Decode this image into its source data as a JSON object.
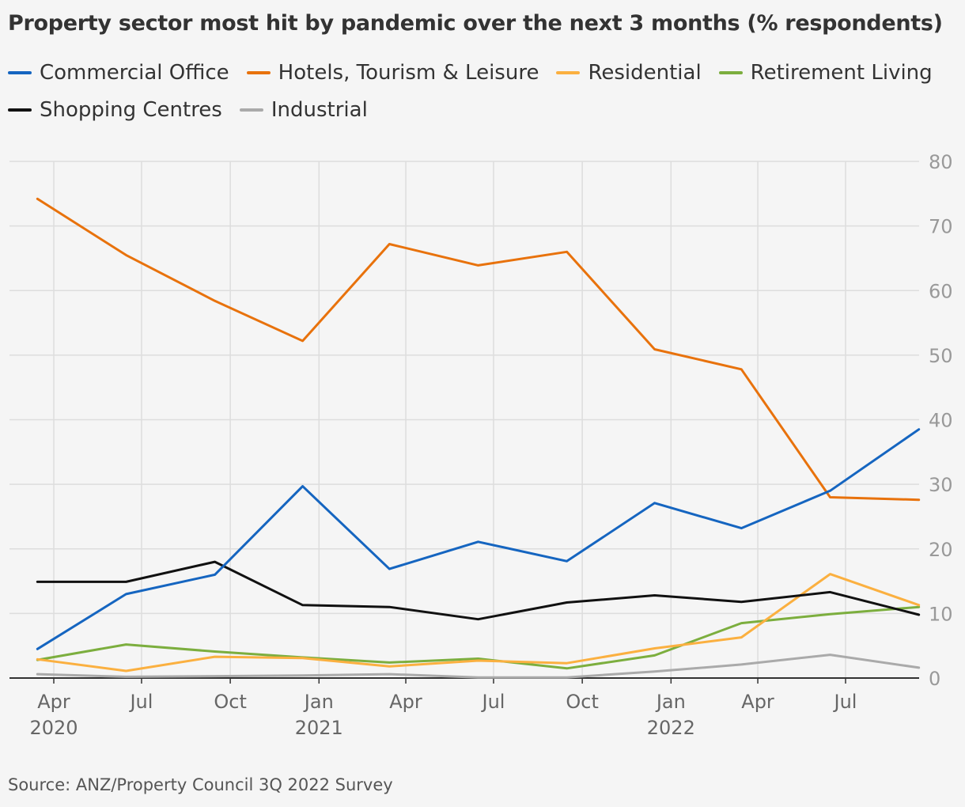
{
  "title": "Property sector most hit by pandemic over the next 3 months (% respondents)",
  "source": "Source: ANZ/Property Council 3Q 2022 Survey",
  "chart_data": {
    "type": "line",
    "title": "Property sector most hit by pandemic over the next 3 months (% respondents)",
    "xlabel": "",
    "ylabel": "",
    "ylim": [
      0,
      80
    ],
    "yticks": [
      0,
      10,
      20,
      30,
      40,
      50,
      60,
      70,
      80
    ],
    "y_axis_position": "right",
    "grid": true,
    "legend_position": "top",
    "x": [
      "2020-03-15",
      "2020-06-15",
      "2020-09-15",
      "2020-12-15",
      "2021-03-15",
      "2021-06-15",
      "2021-09-15",
      "2021-12-15",
      "2022-03-15",
      "2022-06-15",
      "2022-09-15"
    ],
    "xticks": [
      {
        "date": "2020-04-01",
        "label": "Apr",
        "year": "2020"
      },
      {
        "date": "2020-07-01",
        "label": "Jul",
        "year": ""
      },
      {
        "date": "2020-10-01",
        "label": "Oct",
        "year": ""
      },
      {
        "date": "2021-01-01",
        "label": "Jan",
        "year": "2021"
      },
      {
        "date": "2021-04-01",
        "label": "Apr",
        "year": ""
      },
      {
        "date": "2021-07-01",
        "label": "Jul",
        "year": ""
      },
      {
        "date": "2021-10-01",
        "label": "Oct",
        "year": ""
      },
      {
        "date": "2022-01-01",
        "label": "Jan",
        "year": "2022"
      },
      {
        "date": "2022-04-01",
        "label": "Apr",
        "year": ""
      },
      {
        "date": "2022-07-01",
        "label": "Jul",
        "year": ""
      }
    ],
    "series": [
      {
        "name": "Commercial Office",
        "color": "#1565c0",
        "values": [
          4.5,
          13,
          16,
          29.7,
          16.9,
          21.1,
          18.1,
          27.1,
          23.2,
          29,
          38.5
        ]
      },
      {
        "name": "Hotels, Tourism & Leisure",
        "color": "#e8720c",
        "values": [
          74.2,
          65.5,
          58.4,
          52.2,
          67.2,
          63.9,
          66,
          50.9,
          47.8,
          28,
          27.6
        ]
      },
      {
        "name": "Residential",
        "color": "#fbb040",
        "values": [
          2.9,
          1.1,
          3.3,
          3.1,
          1.8,
          2.7,
          2.3,
          4.6,
          6.3,
          16.1,
          11.3
        ]
      },
      {
        "name": "Retirement Living",
        "color": "#7cae3e",
        "values": [
          2.8,
          5.2,
          4.1,
          3.2,
          2.4,
          3,
          1.5,
          3.5,
          8.5,
          9.9,
          11
        ]
      },
      {
        "name": "Shopping Centres",
        "color": "#111111",
        "values": [
          14.9,
          14.9,
          18,
          11.3,
          11,
          9.1,
          11.7,
          12.8,
          11.8,
          13.3,
          9.8
        ]
      },
      {
        "name": "Industrial",
        "color": "#aaaaaa",
        "values": [
          0.6,
          0.2,
          0.3,
          0.4,
          0.6,
          0.1,
          0.1,
          1,
          2.1,
          3.6,
          1.6
        ]
      }
    ]
  }
}
